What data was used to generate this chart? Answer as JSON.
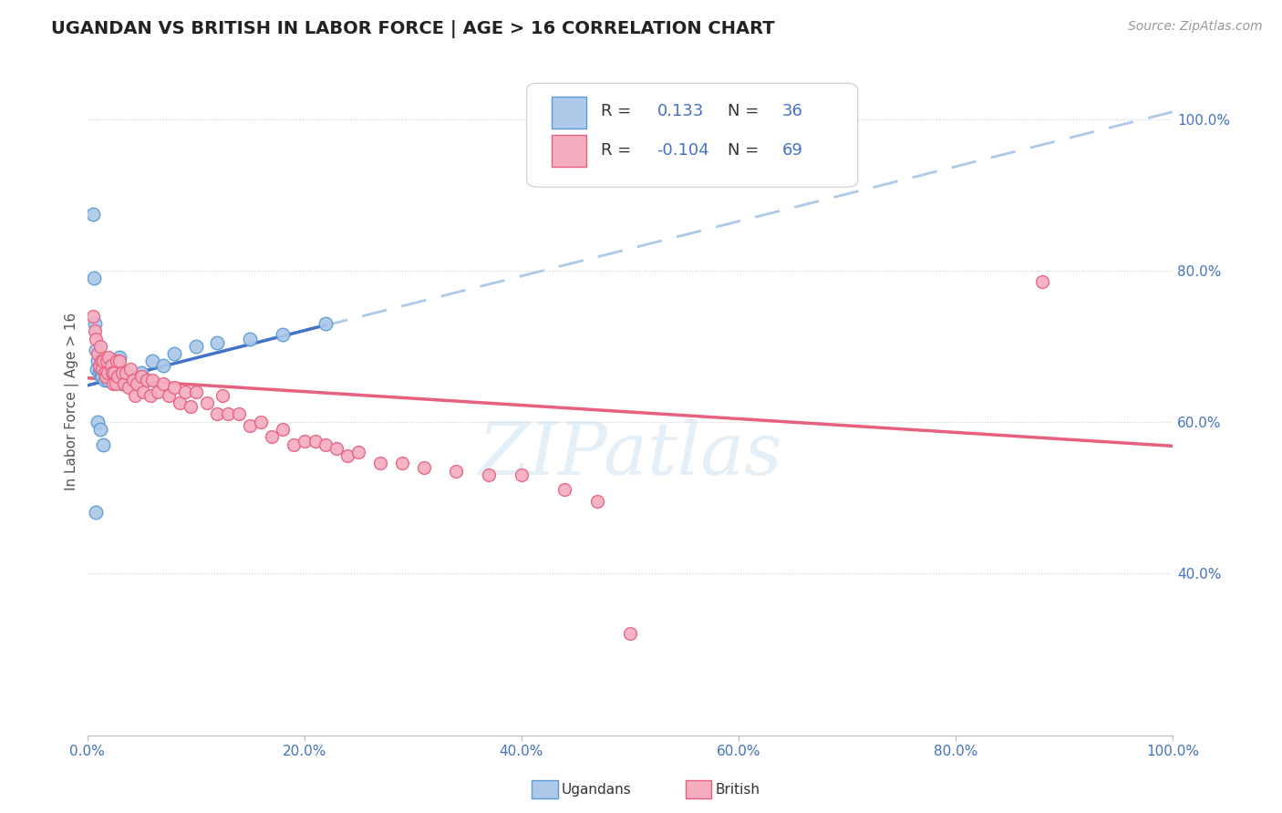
{
  "title": "UGANDAN VS BRITISH IN LABOR FORCE | AGE > 16 CORRELATION CHART",
  "ylabel": "In Labor Force | Age > 16",
  "source_text": "Source: ZipAtlas.com",
  "watermark": "ZIPatlas",
  "xlim": [
    0,
    1.0
  ],
  "ylim": [
    0.185,
    1.07
  ],
  "xticks": [
    0,
    0.2,
    0.4,
    0.6,
    0.8,
    1.0
  ],
  "xticklabels": [
    "0.0%",
    "20.0%",
    "40.0%",
    "60.0%",
    "80.0%",
    "100.0%"
  ],
  "yticks_right": [
    0.4,
    0.6,
    0.8,
    1.0
  ],
  "yticklabels_right": [
    "40.0%",
    "60.0%",
    "80.0%",
    "100.0%"
  ],
  "ugandan_color": "#adc8e8",
  "ugandan_edge": "#5b9bd5",
  "british_color": "#f4aec0",
  "british_edge": "#e8607e",
  "legend_R_color": "#4472c4",
  "trend_ugandan_color": "#4472c4",
  "trend_british_color": "#e8607e",
  "trend_dashed_color": "#adc8e8",
  "ugandan_R": "0.133",
  "ugandan_N": "36",
  "british_R": "-0.104",
  "british_N": "69",
  "ugandan_x": [
    0.005,
    0.006,
    0.007,
    0.008,
    0.009,
    0.01,
    0.011,
    0.012,
    0.013,
    0.014,
    0.015,
    0.016,
    0.017,
    0.018,
    0.019,
    0.02,
    0.022,
    0.025,
    0.028,
    0.03,
    0.032,
    0.035,
    0.04,
    0.05,
    0.06,
    0.07,
    0.08,
    0.1,
    0.12,
    0.15,
    0.18,
    0.22,
    0.008,
    0.01,
    0.012,
    0.015
  ],
  "ugandan_y": [
    0.875,
    0.79,
    0.73,
    0.695,
    0.67,
    0.68,
    0.665,
    0.67,
    0.66,
    0.66,
    0.68,
    0.655,
    0.665,
    0.66,
    0.655,
    0.68,
    0.68,
    0.67,
    0.68,
    0.685,
    0.65,
    0.66,
    0.66,
    0.665,
    0.68,
    0.675,
    0.69,
    0.7,
    0.705,
    0.71,
    0.715,
    0.73,
    0.48,
    0.6,
    0.59,
    0.57
  ],
  "british_x": [
    0.005,
    0.007,
    0.008,
    0.01,
    0.011,
    0.012,
    0.013,
    0.014,
    0.015,
    0.016,
    0.017,
    0.018,
    0.019,
    0.02,
    0.022,
    0.023,
    0.024,
    0.025,
    0.026,
    0.027,
    0.028,
    0.03,
    0.032,
    0.034,
    0.036,
    0.038,
    0.04,
    0.042,
    0.044,
    0.046,
    0.05,
    0.052,
    0.055,
    0.058,
    0.06,
    0.065,
    0.07,
    0.075,
    0.08,
    0.085,
    0.09,
    0.095,
    0.1,
    0.11,
    0.12,
    0.125,
    0.13,
    0.14,
    0.15,
    0.16,
    0.17,
    0.18,
    0.19,
    0.2,
    0.21,
    0.22,
    0.23,
    0.24,
    0.25,
    0.27,
    0.29,
    0.31,
    0.34,
    0.37,
    0.4,
    0.44,
    0.47,
    0.5,
    0.88
  ],
  "british_y": [
    0.74,
    0.72,
    0.71,
    0.69,
    0.675,
    0.7,
    0.68,
    0.67,
    0.68,
    0.665,
    0.66,
    0.68,
    0.665,
    0.685,
    0.675,
    0.665,
    0.65,
    0.665,
    0.65,
    0.68,
    0.66,
    0.68,
    0.665,
    0.65,
    0.665,
    0.645,
    0.67,
    0.655,
    0.635,
    0.65,
    0.66,
    0.64,
    0.655,
    0.635,
    0.655,
    0.64,
    0.65,
    0.635,
    0.645,
    0.625,
    0.64,
    0.62,
    0.64,
    0.625,
    0.61,
    0.635,
    0.61,
    0.61,
    0.595,
    0.6,
    0.58,
    0.59,
    0.57,
    0.575,
    0.575,
    0.57,
    0.565,
    0.555,
    0.56,
    0.545,
    0.545,
    0.54,
    0.535,
    0.53,
    0.53,
    0.51,
    0.495,
    0.32,
    0.785
  ],
  "ugandan_trend_x0": 0.0,
  "ugandan_trend_x1": 0.22,
  "ugandan_trend_y0": 0.648,
  "ugandan_trend_y1": 0.728,
  "dashed_trend_x0": 0.0,
  "dashed_trend_x1": 1.0,
  "dashed_trend_y0": 0.648,
  "dashed_trend_y1": 1.01,
  "british_trend_x0": 0.0,
  "british_trend_x1": 1.0,
  "british_trend_y0": 0.658,
  "british_trend_y1": 0.568
}
